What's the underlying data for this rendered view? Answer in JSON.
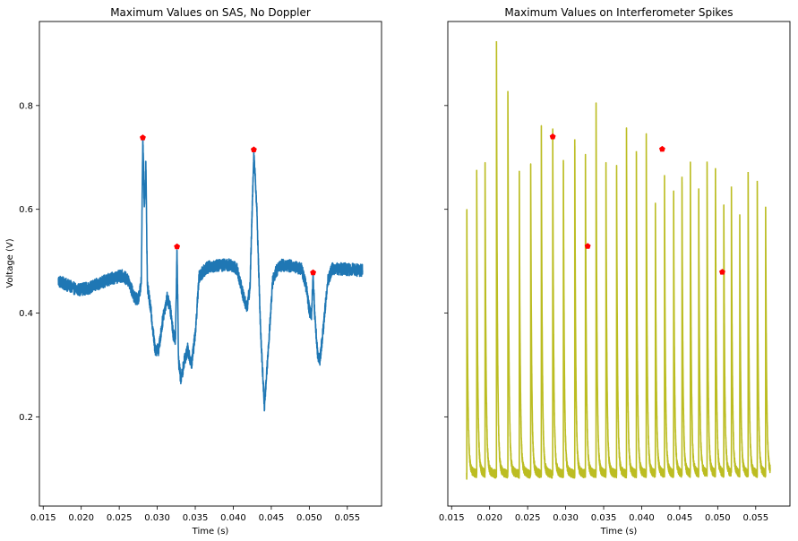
{
  "figure": {
    "background": "#ffffff"
  },
  "chart_data": [
    {
      "type": "line",
      "title": "Maximum Values on SAS, No Doppler",
      "xlabel": "Time (s)",
      "ylabel": "Voltage (V)",
      "xlim": [
        0.0145,
        0.0595
      ],
      "ylim": [
        0.028,
        0.962
      ],
      "xticks": [
        0.015,
        0.02,
        0.025,
        0.03,
        0.035,
        0.04,
        0.045,
        0.05,
        0.055
      ],
      "xtick_labels": [
        "0.015",
        "0.020",
        "0.025",
        "0.030",
        "0.035",
        "0.040",
        "0.045",
        "0.050",
        "0.055"
      ],
      "yticks": [
        0.2,
        0.4,
        0.6,
        0.8
      ],
      "ytick_labels": [
        "0.2",
        "0.4",
        "0.6",
        "0.8"
      ],
      "grid": false,
      "series": [
        {
          "color": "#1f77b4",
          "noise": 0.012,
          "points": [
            [
              0.017,
              0.462
            ],
            [
              0.018,
              0.455
            ],
            [
              0.0195,
              0.445
            ],
            [
              0.021,
              0.448
            ],
            [
              0.0225,
              0.458
            ],
            [
              0.024,
              0.467
            ],
            [
              0.0255,
              0.472
            ],
            [
              0.0262,
              0.462
            ],
            [
              0.027,
              0.43
            ],
            [
              0.0275,
              0.425
            ],
            [
              0.0279,
              0.46
            ],
            [
              0.0281,
              0.738
            ],
            [
              0.0283,
              0.6
            ],
            [
              0.0285,
              0.695
            ],
            [
              0.0287,
              0.455
            ],
            [
              0.0292,
              0.4
            ],
            [
              0.0297,
              0.33
            ],
            [
              0.0302,
              0.33
            ],
            [
              0.0308,
              0.395
            ],
            [
              0.0313,
              0.43
            ],
            [
              0.0317,
              0.41
            ],
            [
              0.0321,
              0.36
            ],
            [
              0.0324,
              0.35
            ],
            [
              0.0326,
              0.528
            ],
            [
              0.0328,
              0.31
            ],
            [
              0.0331,
              0.27
            ],
            [
              0.0336,
              0.31
            ],
            [
              0.034,
              0.33
            ],
            [
              0.0345,
              0.3
            ],
            [
              0.035,
              0.36
            ],
            [
              0.0355,
              0.47
            ],
            [
              0.0365,
              0.488
            ],
            [
              0.038,
              0.492
            ],
            [
              0.0395,
              0.493
            ],
            [
              0.0405,
              0.485
            ],
            [
              0.0412,
              0.44
            ],
            [
              0.0418,
              0.41
            ],
            [
              0.0422,
              0.45
            ],
            [
              0.0427,
              0.712
            ],
            [
              0.0431,
              0.6
            ],
            [
              0.0436,
              0.36
            ],
            [
              0.0441,
              0.22
            ],
            [
              0.0446,
              0.33
            ],
            [
              0.0452,
              0.465
            ],
            [
              0.046,
              0.492
            ],
            [
              0.047,
              0.492
            ],
            [
              0.048,
              0.49
            ],
            [
              0.049,
              0.485
            ],
            [
              0.0496,
              0.45
            ],
            [
              0.05,
              0.405
            ],
            [
              0.0503,
              0.395
            ],
            [
              0.0505,
              0.478
            ],
            [
              0.0507,
              0.4
            ],
            [
              0.0511,
              0.32
            ],
            [
              0.0514,
              0.31
            ],
            [
              0.0519,
              0.38
            ],
            [
              0.0524,
              0.46
            ],
            [
              0.053,
              0.485
            ],
            [
              0.0545,
              0.485
            ],
            [
              0.057,
              0.482
            ]
          ]
        }
      ],
      "markers": {
        "color": "#ff0000",
        "shape": "pentagon",
        "points": [
          [
            0.0281,
            0.738
          ],
          [
            0.0326,
            0.528
          ],
          [
            0.0427,
            0.715
          ],
          [
            0.0505,
            0.478
          ]
        ]
      }
    },
    {
      "type": "line",
      "title": "Maximum Values on Interferometer Spikes",
      "xlabel": "Time (s)",
      "ylabel": "",
      "xlim": [
        0.0145,
        0.0595
      ],
      "ylim": [
        0.028,
        0.962
      ],
      "xticks": [
        0.015,
        0.02,
        0.025,
        0.03,
        0.035,
        0.04,
        0.045,
        0.05,
        0.055
      ],
      "xtick_labels": [
        "0.015",
        "0.020",
        "0.025",
        "0.030",
        "0.035",
        "0.040",
        "0.045",
        "0.050",
        "0.055"
      ],
      "yticks": [
        0.2,
        0.4,
        0.6,
        0.8
      ],
      "ytick_labels": [
        "",
        "",
        "",
        ""
      ],
      "grid": false,
      "series": [
        {
          "color": "#bcbd22",
          "baseline": 0.088,
          "noise": 0.008,
          "spikes": [
            [
              0.017,
              0.597
            ],
            [
              0.0183,
              0.676
            ],
            [
              0.0194,
              0.688
            ],
            [
              0.0209,
              0.924
            ],
            [
              0.0224,
              0.828
            ],
            [
              0.0239,
              0.669
            ],
            [
              0.0254,
              0.686
            ],
            [
              0.0268,
              0.755
            ],
            [
              0.0283,
              0.742
            ],
            [
              0.0297,
              0.695
            ],
            [
              0.0312,
              0.735
            ],
            [
              0.0326,
              0.7
            ],
            [
              0.034,
              0.793
            ],
            [
              0.0353,
              0.682
            ],
            [
              0.0367,
              0.672
            ],
            [
              0.038,
              0.757
            ],
            [
              0.0393,
              0.712
            ],
            [
              0.0406,
              0.74
            ],
            [
              0.0418,
              0.603
            ],
            [
              0.043,
              0.649
            ],
            [
              0.0442,
              0.621
            ],
            [
              0.0453,
              0.663
            ],
            [
              0.0464,
              0.685
            ],
            [
              0.0475,
              0.625
            ],
            [
              0.0486,
              0.692
            ],
            [
              0.0497,
              0.678
            ],
            [
              0.0508,
              0.6
            ],
            [
              0.0518,
              0.644
            ],
            [
              0.0529,
              0.578
            ],
            [
              0.054,
              0.672
            ],
            [
              0.0552,
              0.655
            ],
            [
              0.0563,
              0.605
            ]
          ]
        }
      ],
      "markers": {
        "color": "#ff0000",
        "shape": "pentagon",
        "points": [
          [
            0.0283,
            0.74
          ],
          [
            0.0329,
            0.529
          ],
          [
            0.0427,
            0.716
          ],
          [
            0.0506,
            0.479
          ]
        ]
      }
    }
  ]
}
